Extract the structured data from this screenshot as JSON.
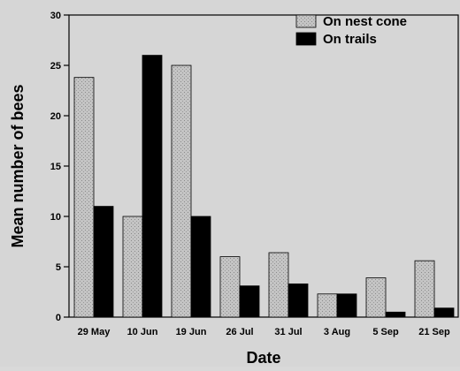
{
  "chart_data": {
    "type": "bar",
    "xlabel": "Date",
    "ylabel": "Mean number of bees",
    "ylim": [
      0,
      30
    ],
    "yticks": [
      0,
      5,
      10,
      15,
      20,
      25,
      30
    ],
    "categories": [
      "29 May",
      "10 Jun",
      "19 Jun",
      "26 Jul",
      "31 Jul",
      "3 Aug",
      "5 Sep",
      "21 Sep"
    ],
    "series": [
      {
        "name": "On nest cone",
        "values": [
          23.8,
          10.0,
          25.0,
          6.0,
          6.4,
          2.3,
          3.9,
          5.6
        ],
        "color": "#b8b8b8",
        "pattern": "stippled-gray"
      },
      {
        "name": "On trails",
        "values": [
          11.0,
          26.0,
          10.0,
          3.1,
          3.3,
          2.3,
          0.5,
          0.9
        ],
        "color": "#000000",
        "pattern": "solid"
      }
    ],
    "legend_position": "top-right",
    "grid": false
  }
}
